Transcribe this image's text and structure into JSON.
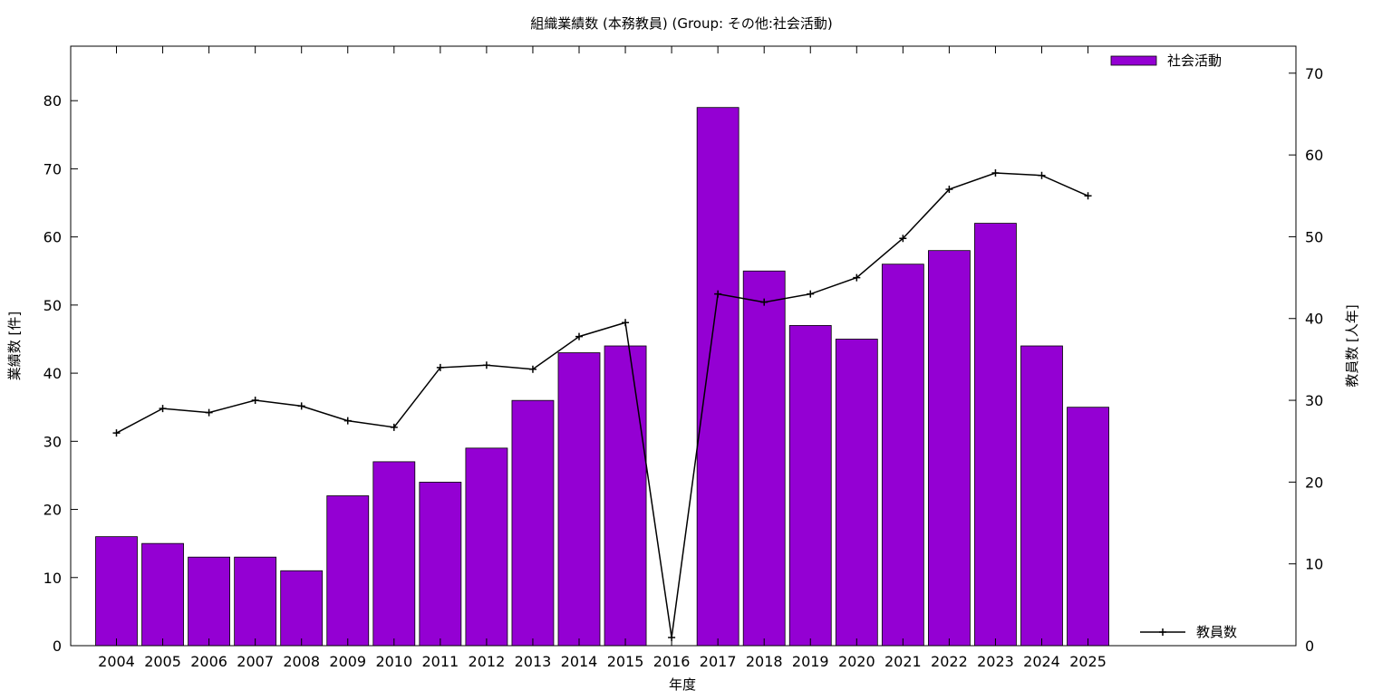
{
  "chart_data": {
    "type": "bar",
    "title": "組織業績数 (本務教員) (Group: その他:社会活動)",
    "xlabel": "年度",
    "ylabel": "業績数 [件]",
    "y2label": "教員数 [人年]",
    "categories": [
      "2004",
      "2005",
      "2006",
      "2007",
      "2008",
      "2009",
      "2010",
      "2011",
      "2012",
      "2013",
      "2014",
      "2015",
      "2016",
      "2017",
      "2018",
      "2019",
      "2020",
      "2021",
      "2022",
      "2023",
      "2024",
      "2025"
    ],
    "ylim": [
      0,
      88
    ],
    "y2lim": [
      0,
      73.3
    ],
    "yticks": [
      0,
      10,
      20,
      30,
      40,
      50,
      60,
      70,
      80
    ],
    "y2ticks": [
      0,
      10,
      20,
      30,
      40,
      50,
      60,
      70
    ],
    "series": [
      {
        "name": "社会活動",
        "kind": "bar",
        "axis": "left",
        "color": "#9400d3",
        "values": [
          16,
          15,
          13,
          13,
          11,
          22,
          27,
          24,
          29,
          36,
          43,
          44,
          0,
          79,
          55,
          47,
          45,
          56,
          58,
          62,
          44,
          35
        ]
      },
      {
        "name": "教員数",
        "kind": "line",
        "axis": "right",
        "color": "#000000",
        "marker": "plus",
        "values": [
          26,
          29,
          28.5,
          30,
          29.3,
          27.5,
          26.7,
          34,
          34.3,
          33.8,
          37.8,
          39.5,
          1,
          43,
          42,
          43,
          45,
          49.8,
          55.8,
          57.8,
          57.5,
          55
        ]
      }
    ],
    "grid": false,
    "legend": [
      "top-right",
      "bottom-right"
    ]
  }
}
